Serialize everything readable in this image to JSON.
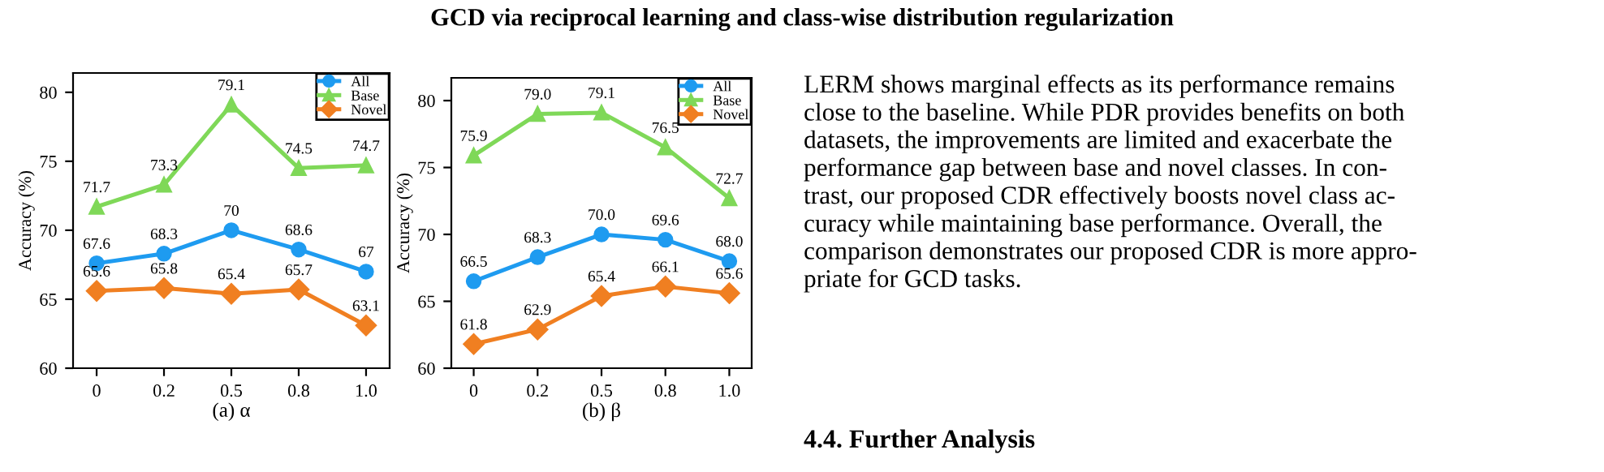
{
  "chart_data": [
    {
      "type": "line",
      "xlabel": "(a) α",
      "ylabel": "Accuracy (%)",
      "categories": [
        "0",
        "0.2",
        "0.5",
        "0.8",
        "1.0"
      ],
      "ylim": [
        60,
        81.4
      ],
      "yticks": [
        60,
        65,
        70,
        75,
        80
      ],
      "legend": "top right",
      "grid": false,
      "series": [
        {
          "name": "All",
          "color": "#1e9bf0",
          "marker": "circle",
          "values": [
            67.6,
            68.3,
            70,
            68.6,
            67
          ],
          "value_labels": [
            "67.6",
            "68.3",
            "70",
            "68.6",
            "67"
          ]
        },
        {
          "name": "Base",
          "color": "#7fd858",
          "marker": "triangle",
          "values": [
            71.7,
            73.3,
            79.1,
            74.5,
            74.7
          ],
          "value_labels": [
            "71.7",
            "73.3",
            "79.1",
            "74.5",
            "74.7"
          ]
        },
        {
          "name": "Novel",
          "color": "#f07f21",
          "marker": "diamond",
          "values": [
            65.6,
            65.8,
            65.4,
            65.7,
            63.1
          ],
          "value_labels": [
            "65.6",
            "65.8",
            "65.4",
            "65.7",
            "63.1"
          ]
        }
      ]
    },
    {
      "type": "line",
      "xlabel": "(b) β",
      "ylabel": "Accuracy (%)",
      "categories": [
        "0",
        "0.2",
        "0.5",
        "0.8",
        "1.0"
      ],
      "ylim": [
        60,
        81.7
      ],
      "yticks": [
        60,
        65,
        70,
        75,
        80
      ],
      "legend": "top right",
      "grid": false,
      "series": [
        {
          "name": "All",
          "color": "#1e9bf0",
          "marker": "circle",
          "values": [
            66.5,
            68.3,
            70.0,
            69.6,
            68.0
          ],
          "value_labels": [
            "66.5",
            "68.3",
            "70.0",
            "69.6",
            "68.0"
          ]
        },
        {
          "name": "Base",
          "color": "#7fd858",
          "marker": "triangle",
          "values": [
            75.9,
            79.0,
            79.1,
            76.5,
            72.7
          ],
          "value_labels": [
            "75.9",
            "79.0",
            "79.1",
            "76.5",
            "72.7"
          ]
        },
        {
          "name": "Novel",
          "color": "#f07f21",
          "marker": "diamond",
          "values": [
            61.8,
            62.9,
            65.4,
            66.1,
            65.6
          ],
          "value_labels": [
            "61.8",
            "62.9",
            "65.4",
            "66.1",
            "65.6"
          ]
        }
      ],
      "annotations": [
        "GCD via reciprocal learning and class-wise distribution regularization",
        "LERM shows marginal effects as its performance remains\nclose to the baseline. While PDR provides benefits on both\ndatasets, the improvements are limited and exacerbate the\nperformance gap between base and novel classes. In con-\ntrast, our proposed CDR effectively boosts novel class ac-\ncuracy while maintaining base performance. Overall, the\ncomparison demonstrates our proposed CDR is more appro-\npriate for GCD tasks.",
        "4.4. Further Analysis"
      ]
    }
  ]
}
